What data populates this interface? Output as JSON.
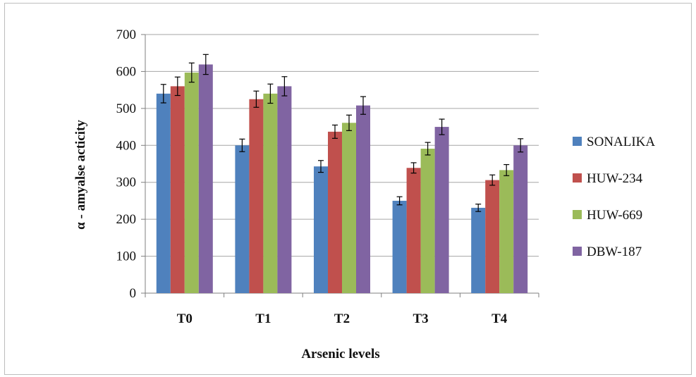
{
  "chart_data": {
    "type": "bar",
    "xlabel": "Arsenic levels",
    "ylabel": "α - amyalse acticity",
    "ylim": [
      0,
      700
    ],
    "yticks": [
      0,
      100,
      200,
      300,
      400,
      500,
      600,
      700
    ],
    "categories": [
      "T0",
      "T1",
      "T2",
      "T3",
      "T4"
    ],
    "grid": true,
    "legend_position": "right",
    "error_bars": true,
    "series": [
      {
        "name": "SONALIKA",
        "color": "#4f81bd",
        "values": [
          540,
          400,
          343,
          250,
          231
        ],
        "errors": [
          25,
          17,
          16,
          11,
          10
        ]
      },
      {
        "name": "HUW-234",
        "color": "#c0504d",
        "values": [
          560,
          525,
          437,
          339,
          306
        ],
        "errors": [
          25,
          22,
          18,
          14,
          14
        ]
      },
      {
        "name": "HUW-669",
        "color": "#9bbb59",
        "values": [
          597,
          540,
          461,
          391,
          333
        ],
        "errors": [
          26,
          26,
          21,
          17,
          15
        ]
      },
      {
        "name": "DBW-187",
        "color": "#8064a2",
        "values": [
          619,
          560,
          508,
          450,
          400
        ],
        "errors": [
          27,
          26,
          24,
          21,
          18
        ]
      }
    ]
  }
}
